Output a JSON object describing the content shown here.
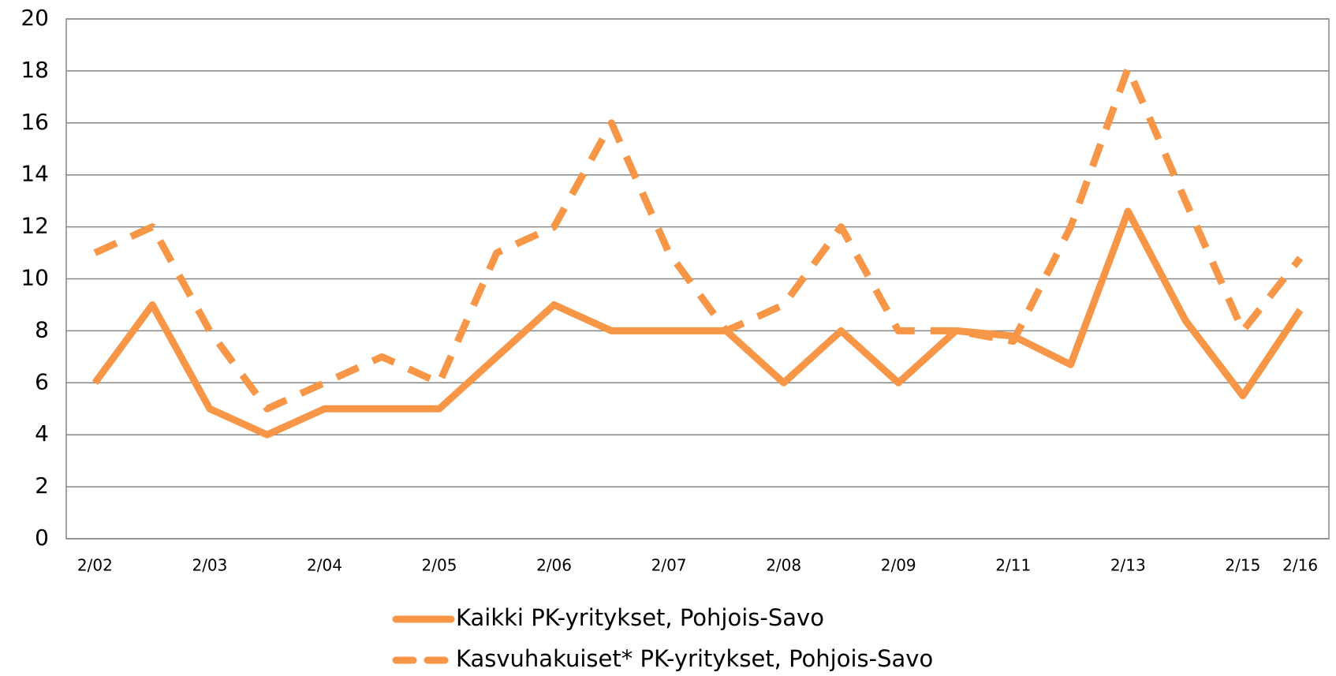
{
  "chart_data": {
    "type": "line",
    "categories": [
      "2/02",
      null,
      "2/03",
      null,
      "2/04",
      null,
      "2/05",
      null,
      "2/06",
      null,
      "2/07",
      null,
      "2/08",
      null,
      "2/09",
      null,
      "2/11",
      null,
      "2/13",
      null,
      "2/15",
      "2/16"
    ],
    "series": [
      {
        "name": "Kaikki PK-yritykset, Pohjois-Savo",
        "color": "#f79646",
        "dash": false,
        "values": [
          6,
          9,
          5,
          4,
          5,
          5,
          5,
          7,
          9,
          8,
          8,
          8,
          6,
          8,
          6,
          8,
          7.8,
          6.7,
          12.6,
          8.4,
          5.5,
          8.8
        ]
      },
      {
        "name": "Kasvuhakuiset* PK-yritykset, Pohjois-Savo",
        "color": "#f79646",
        "dash": true,
        "values": [
          11,
          12,
          8,
          5,
          6,
          7,
          6,
          11,
          12,
          16,
          11,
          8,
          9,
          12,
          8,
          8,
          7.6,
          12,
          18.1,
          13,
          8,
          10.8
        ]
      }
    ],
    "ylim": [
      0,
      20
    ],
    "yticks": [
      0,
      2,
      4,
      6,
      8,
      10,
      12,
      14,
      16,
      18,
      20
    ],
    "grid": true,
    "legend": "bottom"
  }
}
